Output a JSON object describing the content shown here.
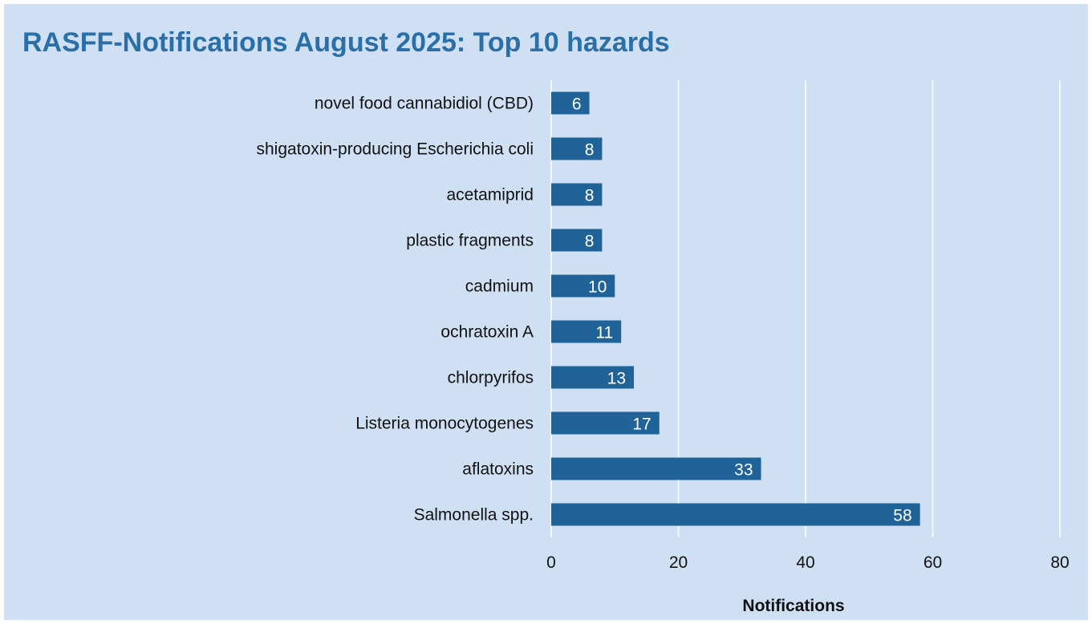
{
  "chart_data": {
    "type": "bar",
    "orientation": "horizontal",
    "title": "RASFF-Notifications August 2025: Top 10 hazards",
    "xlabel": "Notifications",
    "ylabel": "",
    "categories": [
      "novel food cannabidiol (CBD)",
      "shigatoxin-producing Escherichia coli",
      "acetamiprid",
      "plastic fragments",
      "cadmium",
      "ochratoxin A",
      "chlorpyrifos",
      "Listeria monocytogenes",
      "aflatoxins",
      "Salmonella spp."
    ],
    "values": [
      6,
      8,
      8,
      8,
      10,
      11,
      13,
      17,
      33,
      58
    ],
    "xlim": [
      0,
      80
    ],
    "xticks": [
      0,
      20,
      40,
      60,
      80
    ],
    "grid": true,
    "data_labels": true,
    "colors": {
      "background": "#cfe0f4",
      "bar": "#1f6399",
      "title": "#2a6fa8",
      "grid": "#ffffff",
      "label_text": "#ffffff",
      "axis_text": "#111111"
    }
  }
}
